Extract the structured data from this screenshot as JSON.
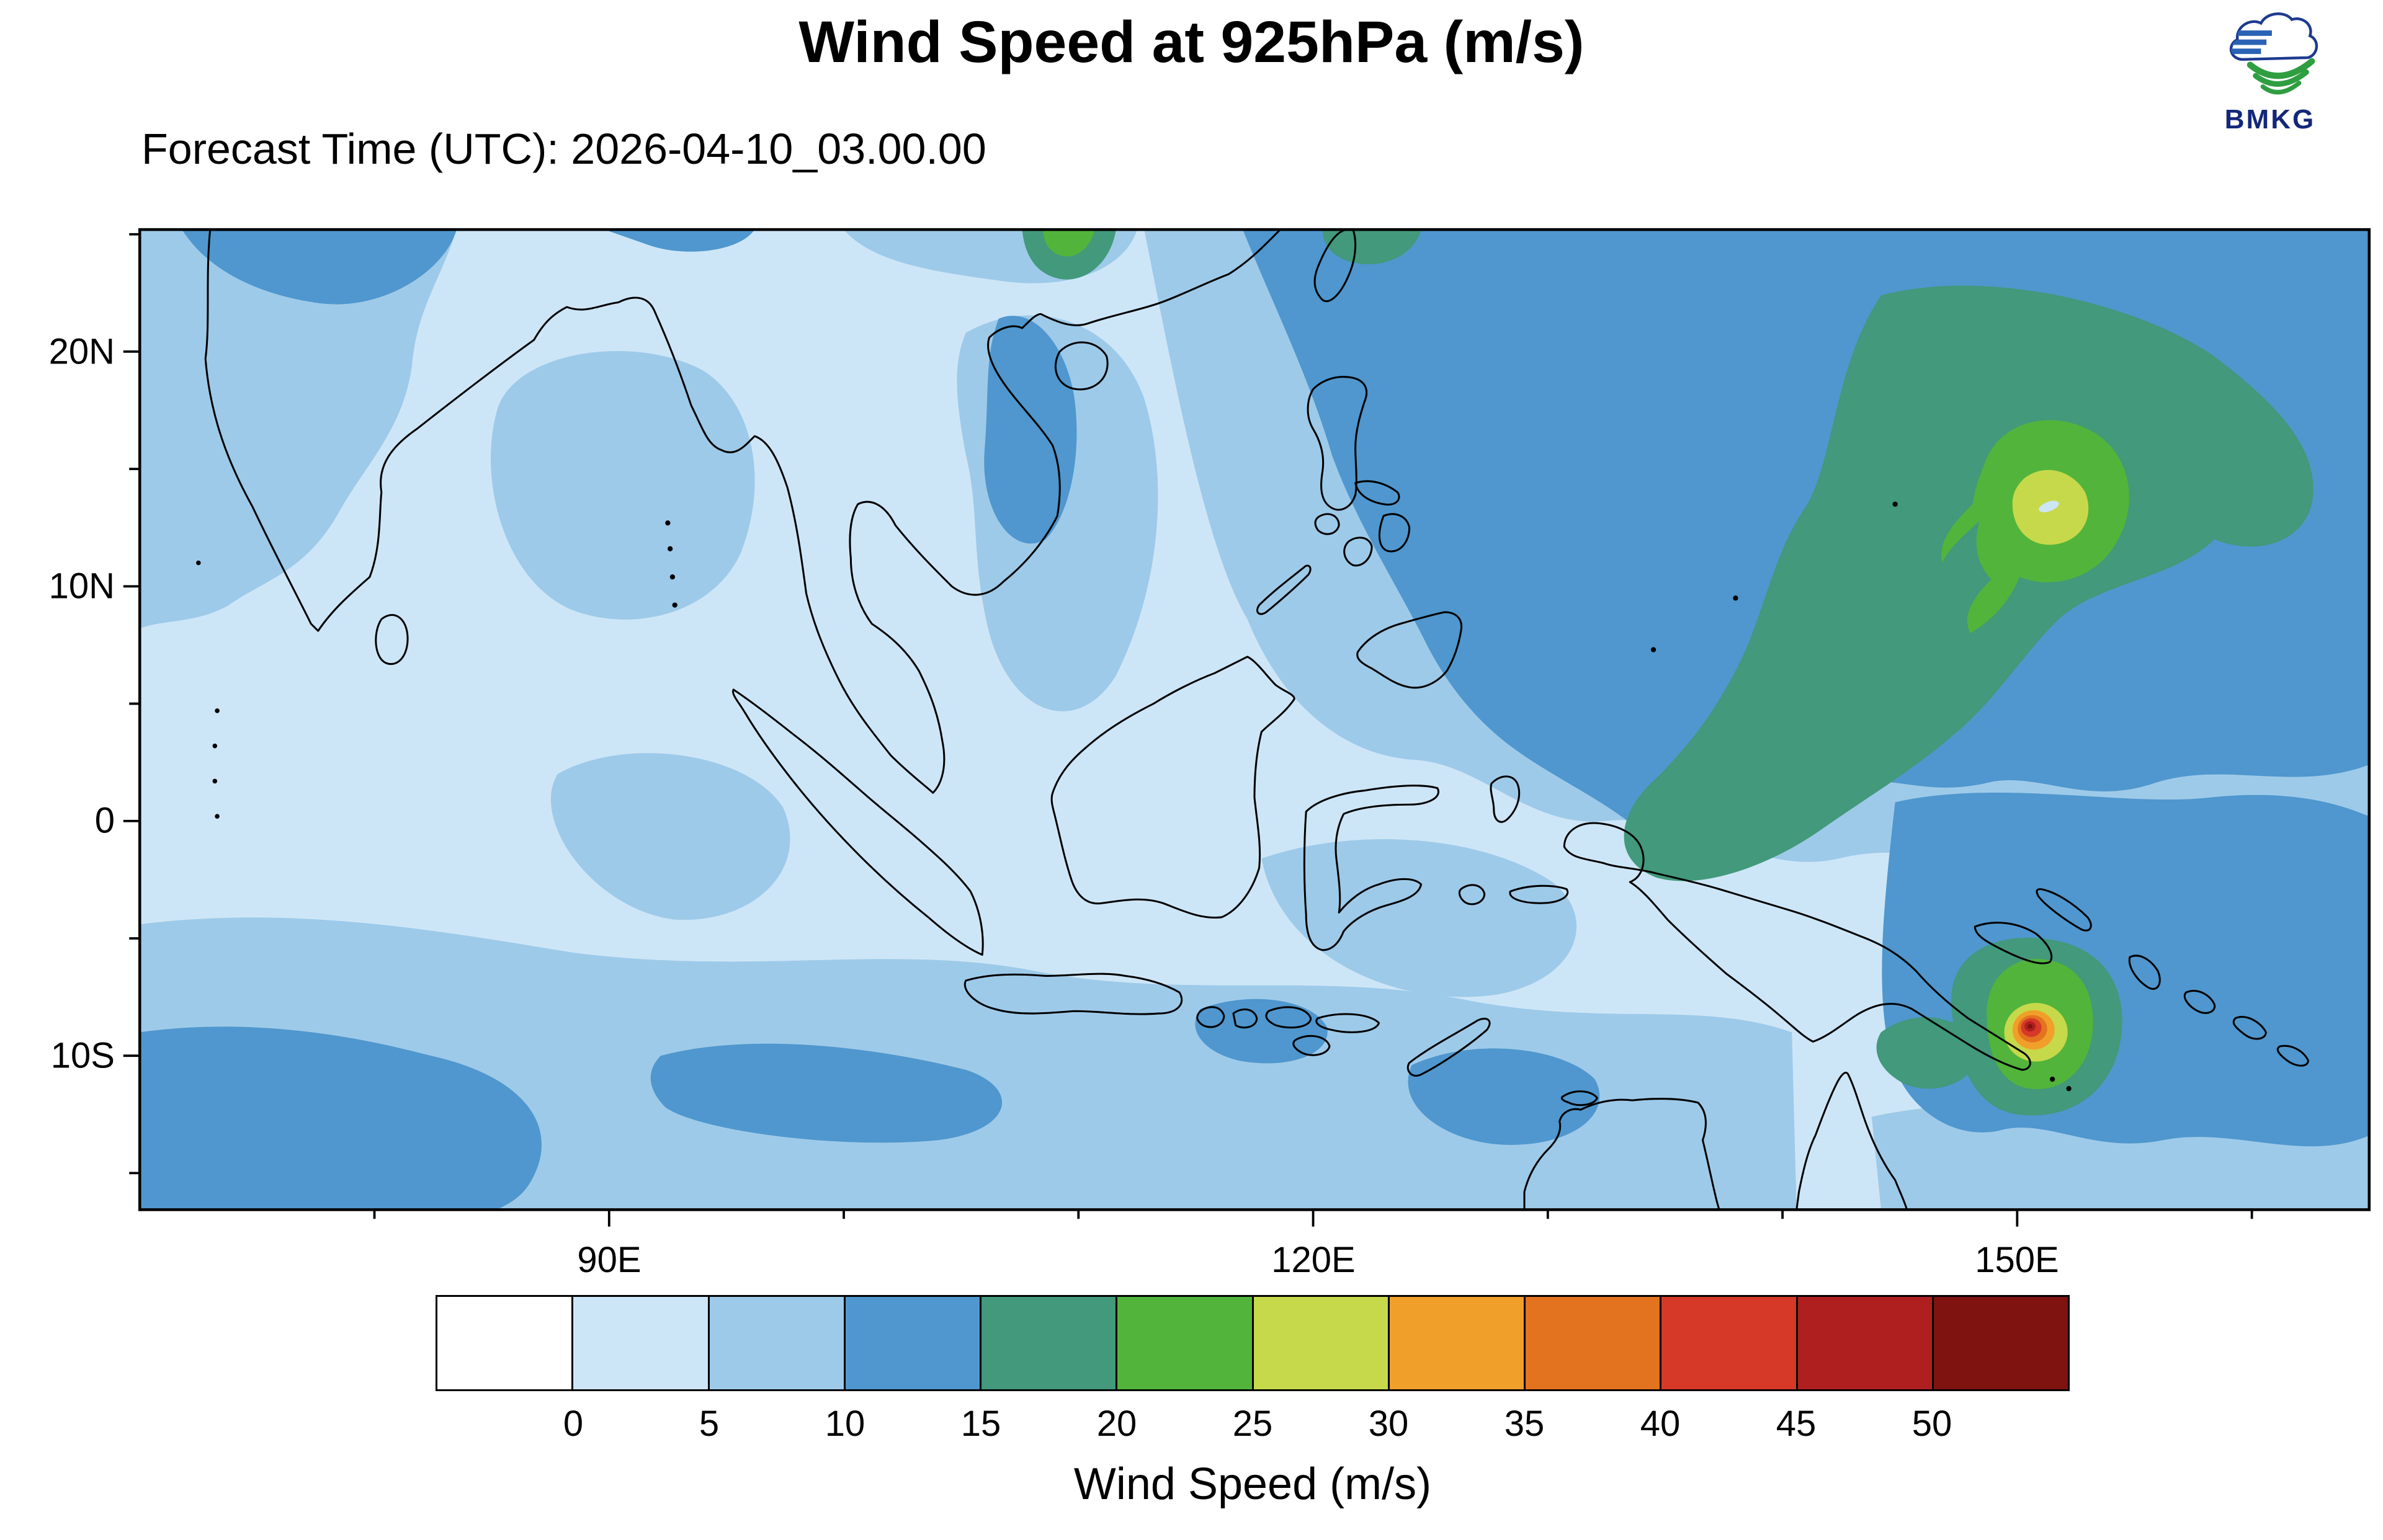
{
  "header": {
    "title": "Wind Speed at 925hPa (m/s)",
    "subtitle": "Forecast Time (UTC): 2026-04-10_03.00.00",
    "logo_text": "BMKG"
  },
  "map": {
    "lat_labels": [
      "20N",
      "10N",
      "0",
      "10S"
    ],
    "lon_labels": [
      "90E",
      "120E",
      "150E"
    ]
  },
  "legend": {
    "title": "Wind Speed (m/s)",
    "ticks": [
      "0",
      "5",
      "10",
      "15",
      "20",
      "25",
      "30",
      "35",
      "40",
      "45",
      "50"
    ],
    "colors": [
      "#ffffff",
      "#cde6f7",
      "#9ecae9",
      "#4f97ce",
      "#42997b",
      "#52b43b",
      "#c6d94b",
      "#f0a02a",
      "#e4731f",
      "#d63927",
      "#b01f1f",
      "#7f1310"
    ]
  },
  "chart_data": {
    "type": "heatmap",
    "title": "Wind Speed at 925hPa (m/s)",
    "forecast_time_utc": "2026-04-10_03.00.00",
    "units": "m/s",
    "lat_ticks": [
      "20N",
      "10N",
      "0",
      "10S"
    ],
    "lon_ticks": [
      "90E",
      "120E",
      "150E"
    ],
    "scale_boundaries_ms": [
      0,
      5,
      10,
      15,
      20,
      25,
      30,
      35,
      40,
      45,
      50
    ],
    "scale_colors": [
      "#ffffff",
      "#cde6f7",
      "#9ecae9",
      "#4f97ce",
      "#42997b",
      "#52b43b",
      "#c6d94b",
      "#f0a02a",
      "#e4731f",
      "#d63927",
      "#b01f1f",
      "#7f1310"
    ],
    "features": [
      {
        "name": "tropical-cyclone-northwest-pacific",
        "approx_position": "151E, 13N",
        "peak_band_ms": "25-30"
      },
      {
        "name": "tropical-cyclone-solomon-sea",
        "approx_position": "150E, 9S",
        "peak_band_ms": "50+"
      },
      {
        "name": "broad-15-20-band",
        "approx_position": "NW Pacific, 125E-160E, 0-20N"
      }
    ]
  }
}
